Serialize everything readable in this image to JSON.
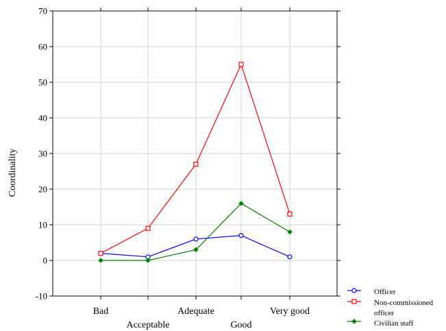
{
  "chart_data": {
    "type": "line",
    "title": "",
    "xlabel": "",
    "ylabel": "Coordinality",
    "ylim": [
      -10,
      70
    ],
    "yticks": [
      -10,
      0,
      10,
      20,
      30,
      40,
      50,
      60,
      70
    ],
    "categories": [
      "Bad",
      "Acceptable",
      "Adequate",
      "Good",
      "Very good"
    ],
    "grid": true,
    "legend_position": "bottom-right",
    "series": [
      {
        "name": "Officer",
        "values": [
          2,
          1,
          6,
          7,
          1
        ],
        "color": "#0000ff",
        "marker": "circle"
      },
      {
        "name": "Non-commissioned officer",
        "values": [
          2,
          9,
          27,
          55,
          13
        ],
        "color": "#ff0000",
        "marker": "square"
      },
      {
        "name": "Civilian staff",
        "values": [
          0,
          0,
          3,
          16,
          8
        ],
        "color": "#008000",
        "marker": "diamond"
      }
    ]
  }
}
